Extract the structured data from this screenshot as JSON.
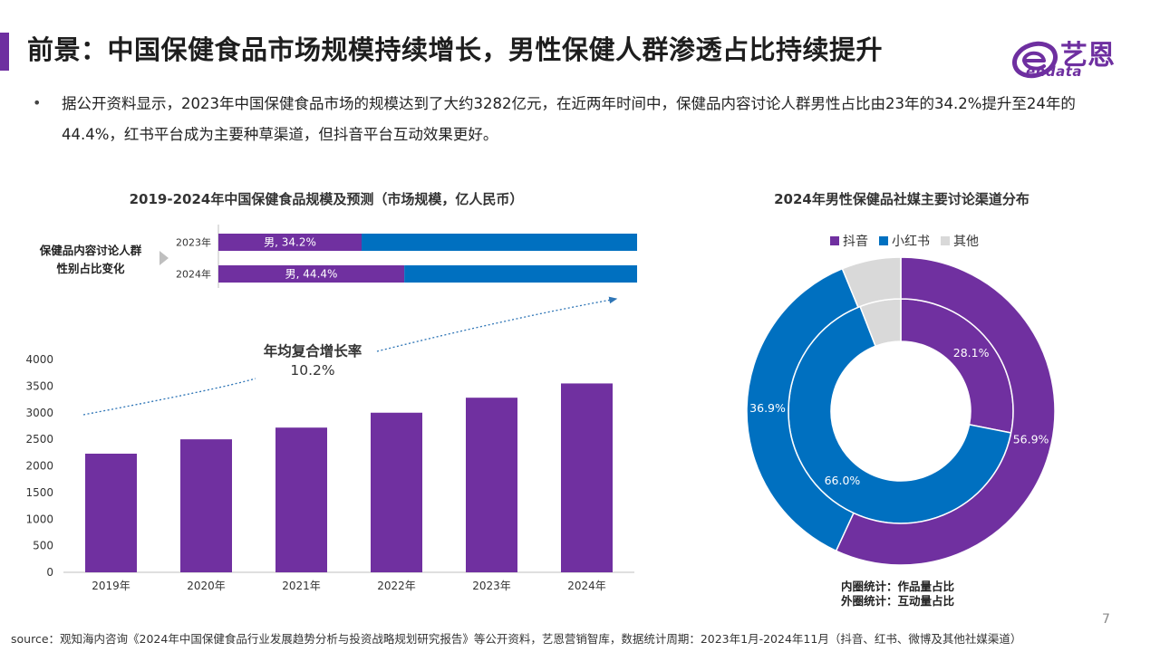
{
  "header": {
    "title": "前景：中国保健食品市场规模持续增长，男性保健人群渗透占比持续提升",
    "logo_name": "艺恩",
    "logo_en": "endata"
  },
  "intro": {
    "bullet": "•",
    "text": "据公开资料显示，2023年中国保健食品市场的规模达到了大约3282亿元，在近两年时间中，保健品内容讨论人群男性占比由23年的34.2%提升至24年的44.4%，红书平台成为主要种草渠道，但抖音平台互动效果更好。"
  },
  "left_chart": {
    "title": "2019-2024年中国保健食品规模及预测（市场规模，亿人民币）",
    "gender_label_line1": "保健品内容讨论人群",
    "gender_label_line2": "性别占比变化",
    "cagr_label": "年均复合增长率",
    "cagr_value": "10.2%"
  },
  "right_chart": {
    "title": "2024年男性保健品社媒主要讨论渠道分布",
    "legend": [
      {
        "label": "抖音",
        "color": "#7030a0"
      },
      {
        "label": "小红书",
        "color": "#0070c0"
      },
      {
        "label": "其他",
        "color": "#d9d9d9"
      }
    ],
    "note_inner": "内圈统计：作品量占比",
    "note_outer": "外圈统计：互动量占比"
  },
  "footer": {
    "source": "source：观知海内咨询《2024年中国保健食品行业发展趋势分析与投资战略规划研究报告》等公开资料，艺恩营销智库，数据统计周期：2023年1月-2024年11月（抖音、红书、微博及其他社媒渠道）",
    "page_number": "7"
  },
  "colors": {
    "purple": "#7030a0",
    "blue": "#0070c0",
    "gray": "#d9d9d9"
  },
  "chart_data": [
    {
      "type": "bar",
      "title": "2019-2024年中国保健食品规模及预测（市场规模，亿人民币）",
      "categories": [
        "2019年",
        "2020年",
        "2021年",
        "2022年",
        "2023年",
        "2024年"
      ],
      "values": [
        2230,
        2500,
        2720,
        3000,
        3282,
        3550
      ],
      "ylim": [
        0,
        4000
      ],
      "yticks": [
        0,
        500,
        1000,
        1500,
        2000,
        2500,
        3000,
        3500,
        4000
      ],
      "grid": false,
      "color": "#7030a0"
    },
    {
      "type": "bar",
      "orientation": "horizontal-stacked",
      "categories": [
        "2023年",
        "2024年"
      ],
      "series": [
        {
          "name": "男",
          "values": [
            34.2,
            44.4
          ],
          "labels": [
            "男, 34.2%",
            "男, 44.4%"
          ],
          "color": "#7030a0"
        },
        {
          "values": [
            65.8,
            55.6
          ],
          "color": "#0070c0"
        }
      ],
      "xlim": [
        0,
        100
      ]
    },
    {
      "type": "pie",
      "style": "double-donut",
      "title": "2024年男性保健品社媒主要讨论渠道分布",
      "labels": [
        "抖音",
        "小红书",
        "其他"
      ],
      "colors": [
        "#7030a0",
        "#0070c0",
        "#d9d9d9"
      ],
      "rings": [
        {
          "name": "内圈统计：作品量占比",
          "values": [
            28.1,
            66.0,
            5.9
          ],
          "shown_labels": [
            "28.1%",
            "66.0%",
            ""
          ]
        },
        {
          "name": "外圈统计：互动量占比",
          "values": [
            56.9,
            36.9,
            6.2
          ],
          "shown_labels": [
            "56.9%",
            "36.9%",
            ""
          ]
        }
      ],
      "legend_position": "top"
    }
  ]
}
